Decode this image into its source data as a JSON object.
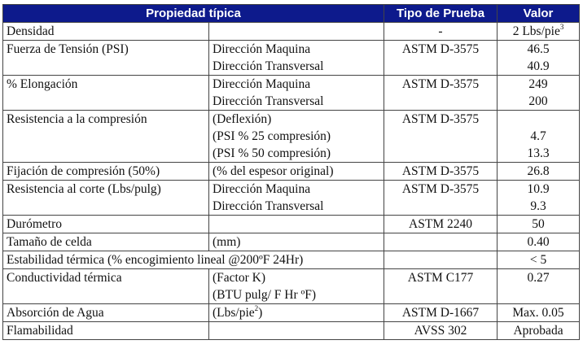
{
  "header": {
    "property": "Propiedad típica",
    "test": "Tipo de Prueba",
    "value": "Valor"
  },
  "rows": [
    {
      "property": "Densidad",
      "conditions": [],
      "test": "-",
      "values": [
        "2 Lbs/pie"
      ],
      "value_sup": "3"
    },
    {
      "property": "Fuerza de Tensión (PSI)",
      "conditions": [
        "Dirección Maquina",
        "Dirección Transversal"
      ],
      "test": "ASTM D-3575",
      "values": [
        "46.5",
        "40.9"
      ]
    },
    {
      "property": "% Elongación",
      "conditions": [
        "Dirección Maquina",
        "Dirección Transversal"
      ],
      "test": "ASTM D-3575",
      "values": [
        "249",
        "200"
      ]
    },
    {
      "property": "Resistencia a la compresión",
      "conditions": [
        "(Deflexión)",
        "(PSI % 25 compresión)",
        "(PSI % 50 compresión)"
      ],
      "test": "ASTM D-3575",
      "values": [
        "",
        "4.7",
        "13.3"
      ]
    },
    {
      "property": "Fijación de compresión (50%)",
      "conditions": [
        "(% del espesor original)"
      ],
      "test": "ASTM D-3575",
      "values": [
        "26.8"
      ]
    },
    {
      "property": "Resistencia al corte (Lbs/pulg)",
      "conditions": [
        "Dirección Maquina",
        "Dirección Transversal"
      ],
      "test": "ASTM D-3575",
      "values": [
        "10.9",
        "9.3"
      ]
    },
    {
      "property": "Durómetro",
      "conditions": [],
      "test": "ASTM 2240",
      "values": [
        "50"
      ]
    },
    {
      "property": "Tamaño de celda",
      "conditions": [
        "(mm)"
      ],
      "test": "",
      "values": [
        "0.40"
      ]
    },
    {
      "property": "Estabilidad térmica (% encogimiento lineal @200ºF 24Hr)",
      "conditions": [],
      "test": "",
      "values": [
        "< 5"
      ],
      "span": true
    },
    {
      "property": "Conductividad térmica",
      "conditions": [
        "(Factor K)",
        "(BTU pulg/ F Hr ºF)"
      ],
      "test": "ASTM C177",
      "values": [
        "0.27",
        ""
      ]
    },
    {
      "property": "Absorción de Agua",
      "conditions": [
        "(Lbs/pie"
      ],
      "condition_sup": "2",
      "condition_tail": ")",
      "test": "ASTM D-1667",
      "values": [
        "Max. 0.05"
      ]
    },
    {
      "property": "Flamabilidad",
      "conditions": [],
      "test": "AVSS 302",
      "values": [
        "Aprobada"
      ]
    }
  ]
}
